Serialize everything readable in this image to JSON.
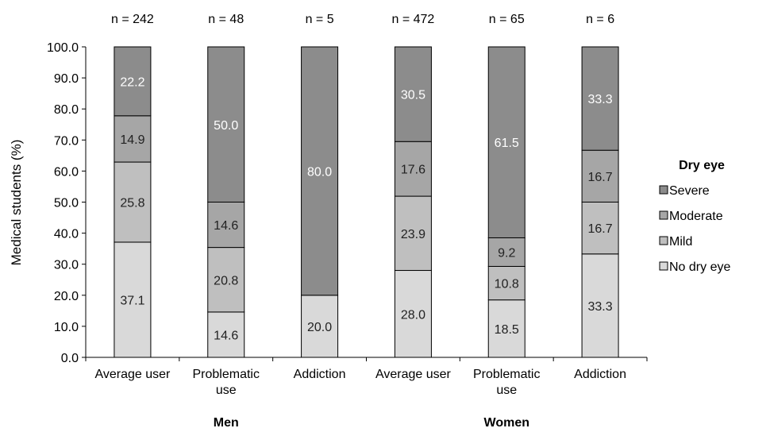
{
  "chart_data": {
    "type": "bar",
    "stacked": true,
    "title": "",
    "xlabel": "",
    "ylabel": "Medical students (%)",
    "ylim": [
      0,
      100
    ],
    "yticks": [
      "0.0",
      "10.0",
      "20.0",
      "30.0",
      "40.0",
      "50.0",
      "60.0",
      "70.0",
      "80.0",
      "90.0",
      "100.0"
    ],
    "categories": [
      "Average user",
      "Problematic use",
      "Addiction",
      "Average user",
      "Problematic use",
      "Addiction"
    ],
    "category_lines": [
      [
        "Average user"
      ],
      [
        "Problematic",
        "use"
      ],
      [
        "Addiction"
      ],
      [
        "Average user"
      ],
      [
        "Problematic",
        "use"
      ],
      [
        "Addiction"
      ]
    ],
    "groups": [
      {
        "label": "Men",
        "categories": [
          0,
          1,
          2
        ]
      },
      {
        "label": "Women",
        "categories": [
          3,
          4,
          5
        ]
      }
    ],
    "n_labels": [
      "n = 242",
      "n = 48",
      "n = 5",
      "n = 472",
      "n = 65",
      "n = 6"
    ],
    "legend_title": "Dry eye",
    "legend_position": "right",
    "series": [
      {
        "name": "No dry eye",
        "color": "#d9d9d9",
        "label_color": "#222222",
        "values": [
          37.1,
          14.6,
          20.0,
          28.0,
          18.5,
          33.3
        ]
      },
      {
        "name": "Mild",
        "color": "#bfbfbf",
        "label_color": "#222222",
        "values": [
          25.8,
          20.8,
          0,
          23.9,
          10.8,
          16.7
        ]
      },
      {
        "name": "Moderate",
        "color": "#a6a6a6",
        "label_color": "#222222",
        "values": [
          14.9,
          14.6,
          0,
          17.6,
          9.2,
          16.7
        ]
      },
      {
        "name": "Severe",
        "color": "#8c8c8c",
        "label_color": "#ffffff",
        "values": [
          22.2,
          50.0,
          80.0,
          30.5,
          61.5,
          33.3
        ]
      }
    ],
    "legend_order": [
      "Severe",
      "Moderate",
      "Mild",
      "No dry eye"
    ],
    "grid": false
  }
}
